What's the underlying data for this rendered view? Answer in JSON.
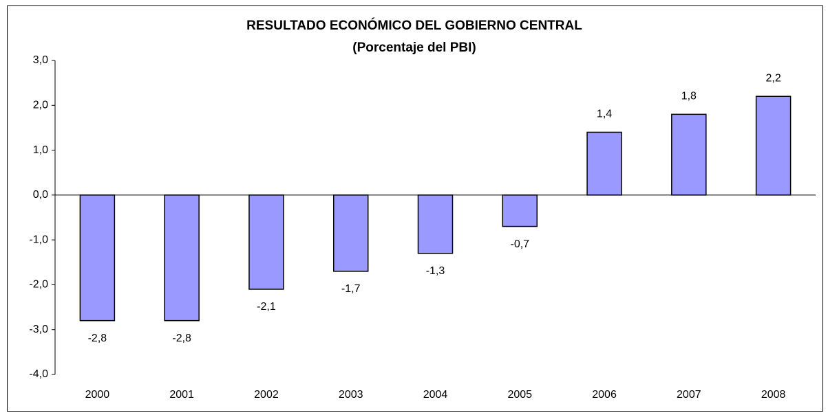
{
  "chart_data": {
    "type": "bar",
    "title": [
      "RESULTADO ECONÓMICO DEL GOBIERNO CENTRAL",
      "(Porcentaje del PBI)"
    ],
    "categories": [
      "2000",
      "2001",
      "2002",
      "2003",
      "2004",
      "2005",
      "2006",
      "2007",
      "2008"
    ],
    "values": [
      -2.8,
      -2.8,
      -2.1,
      -1.7,
      -1.3,
      -0.7,
      1.4,
      1.8,
      2.2
    ],
    "value_labels": [
      "-2,8",
      "-2,8",
      "-2,1",
      "-1,7",
      "-1,3",
      "-0,7",
      "1,4",
      "1,8",
      "2,2"
    ],
    "color": "#9999ff",
    "ylim": [
      -4,
      3
    ],
    "yticks": [
      {
        "value": -4,
        "label": "-4,0"
      },
      {
        "value": -3,
        "label": "-3,0"
      },
      {
        "value": -2,
        "label": "-2,0"
      },
      {
        "value": -1,
        "label": "-1,0"
      },
      {
        "value": 0,
        "label": "0,0"
      },
      {
        "value": 1,
        "label": "1,0"
      },
      {
        "value": 2,
        "label": "2,0"
      },
      {
        "value": 3,
        "label": "3,0"
      }
    ],
    "grid": false
  }
}
